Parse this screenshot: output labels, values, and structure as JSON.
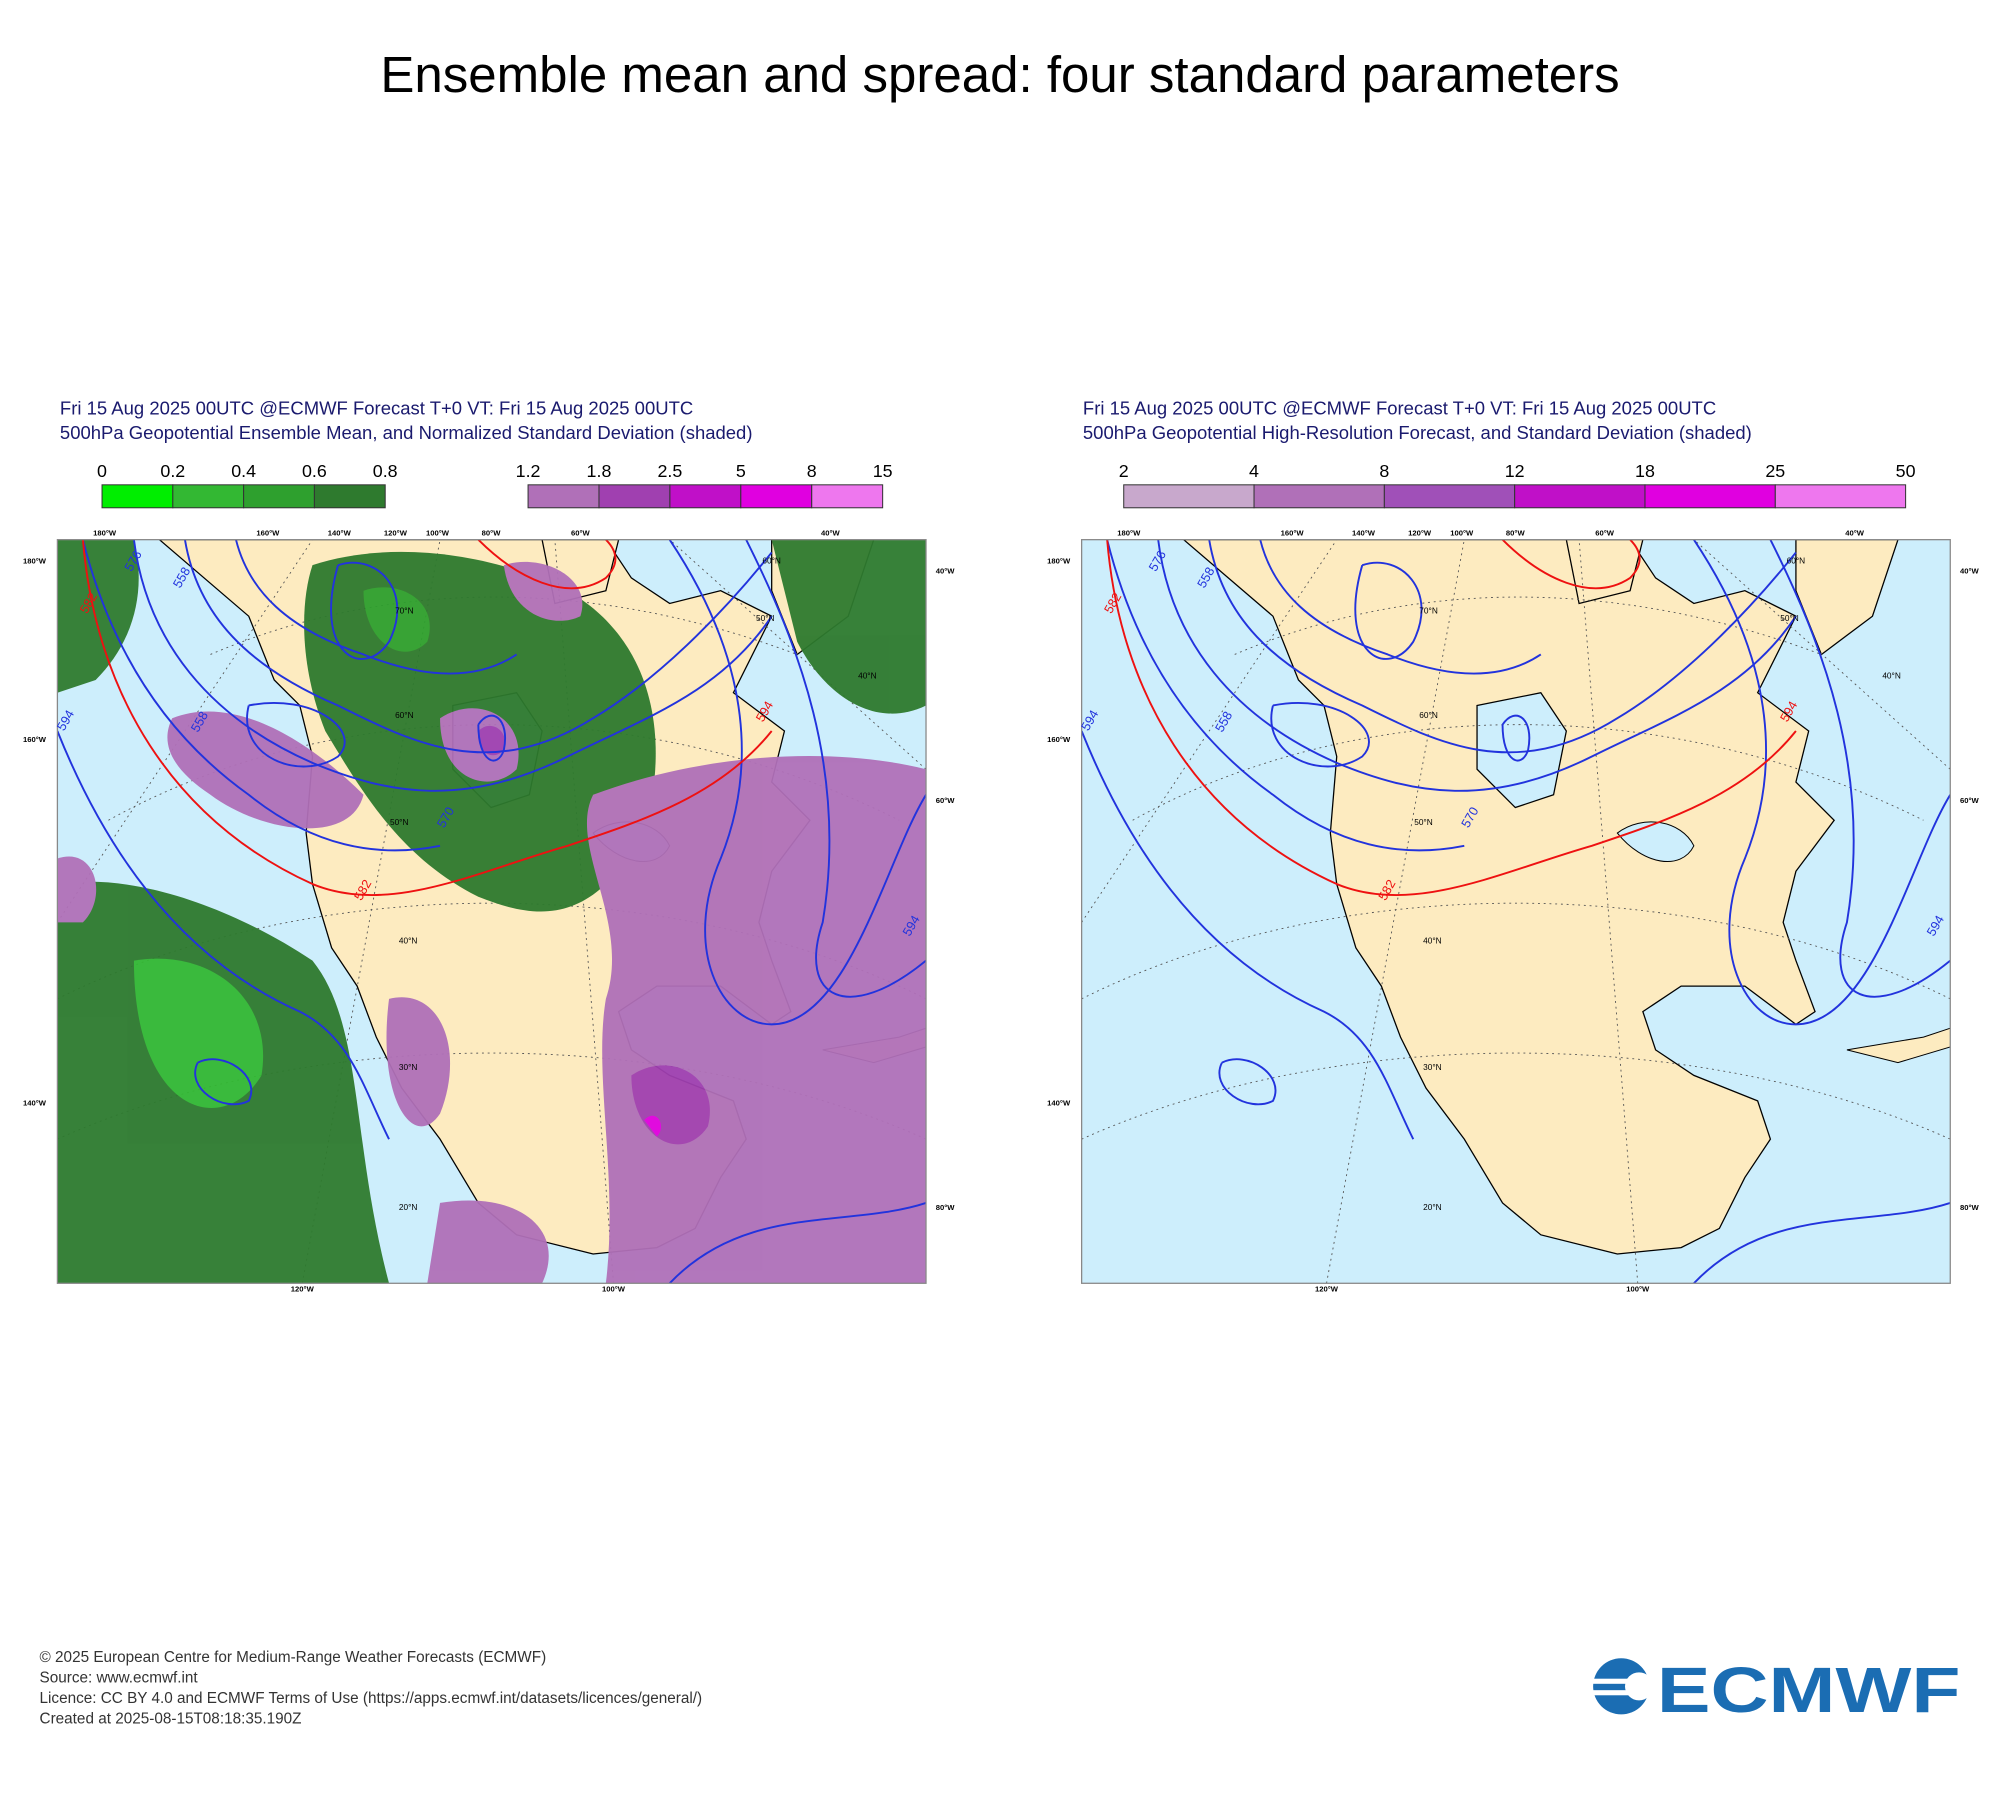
{
  "title": "Ensemble mean and spread: four standard parameters",
  "panels": [
    {
      "header": [
        "Fri 15 Aug 2025 00UTC @ECMWF Forecast T+0 VT: Fri 15 Aug 2025 00UTC",
        "500hPa Geopotential Ensemble Mean, and Normalized Standard Deviation (shaded)"
      ],
      "colorbars": [
        {
          "labels": [
            0,
            0.2,
            0.4,
            0.6,
            0.8
          ],
          "colors": [
            "#00ee00",
            "#33b833",
            "#2ea02e",
            "#2e7a2e"
          ]
        },
        {
          "labels": [
            1.2,
            1.8,
            2.5,
            5,
            8,
            15
          ],
          "colors": [
            "#b070b8",
            "#a040b0",
            "#c010c8",
            "#e000e0",
            "#ee77ee"
          ]
        }
      ],
      "map": {
        "edge_labels": [
          "180°W",
          "160°W",
          "140°W",
          "120°W",
          "100°W",
          "80°W",
          "60°W",
          "40°W",
          "180°W",
          "160°W",
          "140°W",
          "40°W",
          "60°W",
          "80°W",
          "120°W",
          "100°W"
        ],
        "lat_labels": [
          "70°N",
          "60°N",
          "50°N",
          "40°N",
          "30°N",
          "20°N",
          "60°N",
          "50°N",
          "40°N"
        ],
        "contour_labels": [
          "576",
          "558",
          "582",
          "594",
          "558",
          "570",
          "582",
          "594",
          "594"
        ]
      }
    },
    {
      "header": [
        "Fri 15 Aug 2025 00UTC @ECMWF Forecast T+0 VT: Fri 15 Aug 2025 00UTC",
        "500hPa Geopotential High-Resolution Forecast, and Standard Deviation (shaded)"
      ],
      "colorbars": [
        {
          "labels": [
            2,
            4,
            8,
            12,
            18,
            25,
            50
          ],
          "colors": [
            "#c8a8cc",
            "#b070b8",
            "#a050b8",
            "#c010c8",
            "#e000e0",
            "#ee77ee"
          ]
        }
      ],
      "map": {
        "edge_labels": [
          "180°W",
          "160°W",
          "140°W",
          "120°W",
          "100°W",
          "80°W",
          "60°W",
          "40°W",
          "180°W",
          "160°W",
          "140°W",
          "40°W",
          "60°W",
          "80°W",
          "120°W",
          "100°W"
        ],
        "lat_labels": [
          "70°N",
          "60°N",
          "50°N",
          "40°N",
          "30°N",
          "20°N",
          "60°N",
          "50°N",
          "40°N"
        ],
        "contour_labels": [
          "576",
          "558",
          "582",
          "594",
          "558",
          "570",
          "582",
          "594",
          "594"
        ]
      }
    }
  ],
  "footer": [
    "© 2025 European Centre for Medium-Range Weather Forecasts (ECMWF)",
    "Source: www.ecmwf.int",
    "Licence: CC BY 4.0 and ECMWF Terms of Use (https://apps.ecmwf.int/datasets/licences/general/)",
    "Created at 2025-08-15T08:18:35.190Z"
  ],
  "logo": "ECMWF"
}
